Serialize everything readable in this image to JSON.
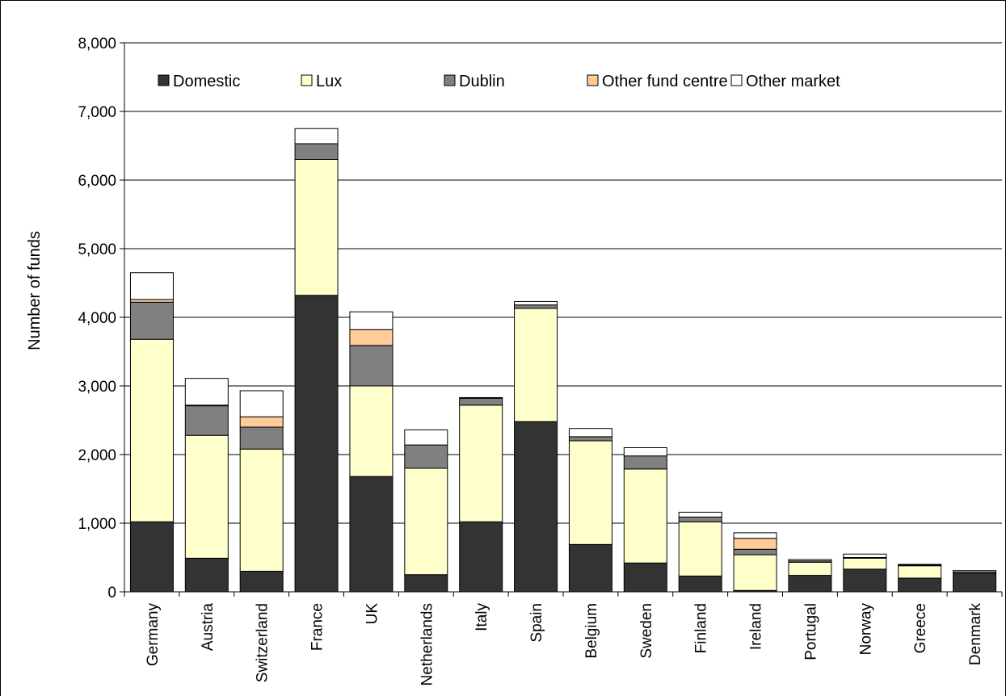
{
  "chart_data": {
    "type": "bar",
    "stacked": true,
    "title": "",
    "xlabel": "",
    "ylabel": "Number of funds",
    "ylim": [
      0,
      8000
    ],
    "yticks": [
      0,
      1000,
      2000,
      3000,
      4000,
      5000,
      6000,
      7000,
      8000
    ],
    "ytick_labels": [
      "0",
      "1,000",
      "2,000",
      "3,000",
      "4,000",
      "5,000",
      "6,000",
      "7,000",
      "8,000"
    ],
    "grid": true,
    "legend_position": "top",
    "categories": [
      "Germany",
      "Austria",
      "Switzerland",
      "France",
      "UK",
      "Netherlands",
      "Italy",
      "Spain",
      "Belgium",
      "Sweden",
      "Finland",
      "Ireland",
      "Portugal",
      "Norway",
      "Greece",
      "Denmark"
    ],
    "series": [
      {
        "name": "Domestic",
        "color": "#333333",
        "values": [
          1020,
          490,
          300,
          4320,
          1680,
          250,
          1020,
          2480,
          690,
          420,
          230,
          20,
          240,
          330,
          200,
          270
        ]
      },
      {
        "name": "Lux",
        "color": "#ffffcc",
        "values": [
          2660,
          1790,
          1780,
          1980,
          1320,
          1550,
          1700,
          1650,
          1510,
          1370,
          790,
          520,
          190,
          160,
          180,
          0
        ]
      },
      {
        "name": "Dublin",
        "color": "#808080",
        "values": [
          540,
          430,
          320,
          230,
          590,
          340,
          100,
          50,
          60,
          190,
          70,
          80,
          20,
          10,
          10,
          20
        ]
      },
      {
        "name": "Other fund centre",
        "color": "#ffcc99",
        "values": [
          40,
          10,
          150,
          0,
          230,
          0,
          0,
          0,
          0,
          0,
          0,
          160,
          0,
          0,
          0,
          0
        ]
      },
      {
        "name": "Other market",
        "color": "#ffffff",
        "values": [
          390,
          390,
          380,
          220,
          260,
          220,
          10,
          50,
          120,
          120,
          70,
          80,
          20,
          50,
          10,
          20
        ]
      }
    ]
  }
}
